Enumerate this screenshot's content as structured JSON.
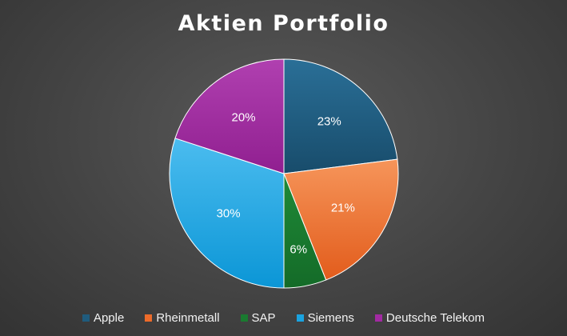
{
  "chart_data": {
    "type": "pie",
    "title": "Aktien Portfolio",
    "categories": [
      "Apple",
      "Rheinmetall",
      "SAP",
      "Siemens",
      "Deutsche Telekom"
    ],
    "values": [
      23,
      21,
      6,
      30,
      20
    ],
    "labels": [
      "23%",
      "21%",
      "6%",
      "30%",
      "20%"
    ],
    "colors": [
      "#1f5b7d",
      "#ed6b2a",
      "#1a7a30",
      "#1aa3e0",
      "#a22aa2"
    ],
    "legend_position": "bottom"
  }
}
